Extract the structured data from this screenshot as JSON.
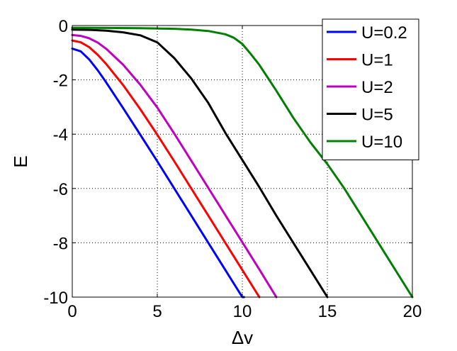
{
  "chart_data": {
    "type": "line",
    "xlabel": "Δv",
    "ylabel": "E",
    "xlim": [
      0,
      20
    ],
    "ylim": [
      -10,
      0
    ],
    "xticks": [
      0,
      5,
      10,
      15,
      20
    ],
    "yticks": [
      0,
      -2,
      -4,
      -6,
      -8,
      -10
    ],
    "xtick_labels": [
      "0",
      "5",
      "10",
      "15",
      "20"
    ],
    "ytick_labels": [
      "0",
      "-2",
      "-4",
      "-6",
      "-8",
      "-10"
    ],
    "grid": true,
    "legend_position": "top-right",
    "series": [
      {
        "name": "U=0.2",
        "color": "#0000ff",
        "x": [
          0,
          0.5,
          1,
          1.5,
          2,
          3,
          4,
          5,
          6,
          7,
          8,
          9,
          10,
          10.1
        ],
        "y": [
          -0.85,
          -0.95,
          -1.25,
          -1.65,
          -2.1,
          -3.05,
          -4.02,
          -5.0,
          -6.0,
          -7.0,
          -8.0,
          -9.0,
          -10.0,
          -10.0
        ]
      },
      {
        "name": "U=1",
        "color": "#ff0000",
        "x": [
          0,
          0.5,
          1,
          1.5,
          2,
          3,
          4,
          5,
          6,
          7,
          8,
          9,
          10,
          11
        ],
        "y": [
          -0.55,
          -0.62,
          -0.8,
          -1.08,
          -1.42,
          -2.2,
          -3.08,
          -4.02,
          -5.0,
          -6.0,
          -7.0,
          -8.0,
          -9.0,
          -10.0
        ]
      },
      {
        "name": "U=2",
        "color": "#bf00bf",
        "x": [
          0,
          0.5,
          1,
          1.5,
          2,
          3,
          4,
          5,
          6,
          7,
          8,
          9,
          10,
          11,
          12
        ],
        "y": [
          -0.35,
          -0.38,
          -0.47,
          -0.63,
          -0.86,
          -1.45,
          -2.18,
          -3.02,
          -3.98,
          -4.98,
          -5.98,
          -6.98,
          -7.98,
          -8.98,
          -10.0
        ]
      },
      {
        "name": "U=5",
        "color": "#000000",
        "x": [
          0,
          1,
          2,
          3,
          4,
          5,
          6,
          7,
          8,
          9,
          10,
          11,
          12,
          13,
          14,
          15
        ],
        "y": [
          -0.15,
          -0.16,
          -0.19,
          -0.25,
          -0.36,
          -0.62,
          -1.2,
          -1.95,
          -2.85,
          -3.95,
          -4.95,
          -5.95,
          -7.0,
          -8.0,
          -9.0,
          -10.0
        ]
      },
      {
        "name": "U=10",
        "color": "#008000",
        "x": [
          0,
          2,
          4,
          6,
          7,
          8,
          9,
          9.5,
          10,
          10.5,
          11,
          12,
          13,
          14,
          15,
          16,
          17,
          18,
          19,
          20
        ],
        "y": [
          -0.08,
          -0.09,
          -0.1,
          -0.12,
          -0.15,
          -0.2,
          -0.32,
          -0.45,
          -0.68,
          -1.05,
          -1.45,
          -2.4,
          -3.4,
          -4.3,
          -5.1,
          -6.0,
          -7.0,
          -8.0,
          -9.0,
          -10.0
        ]
      }
    ]
  }
}
